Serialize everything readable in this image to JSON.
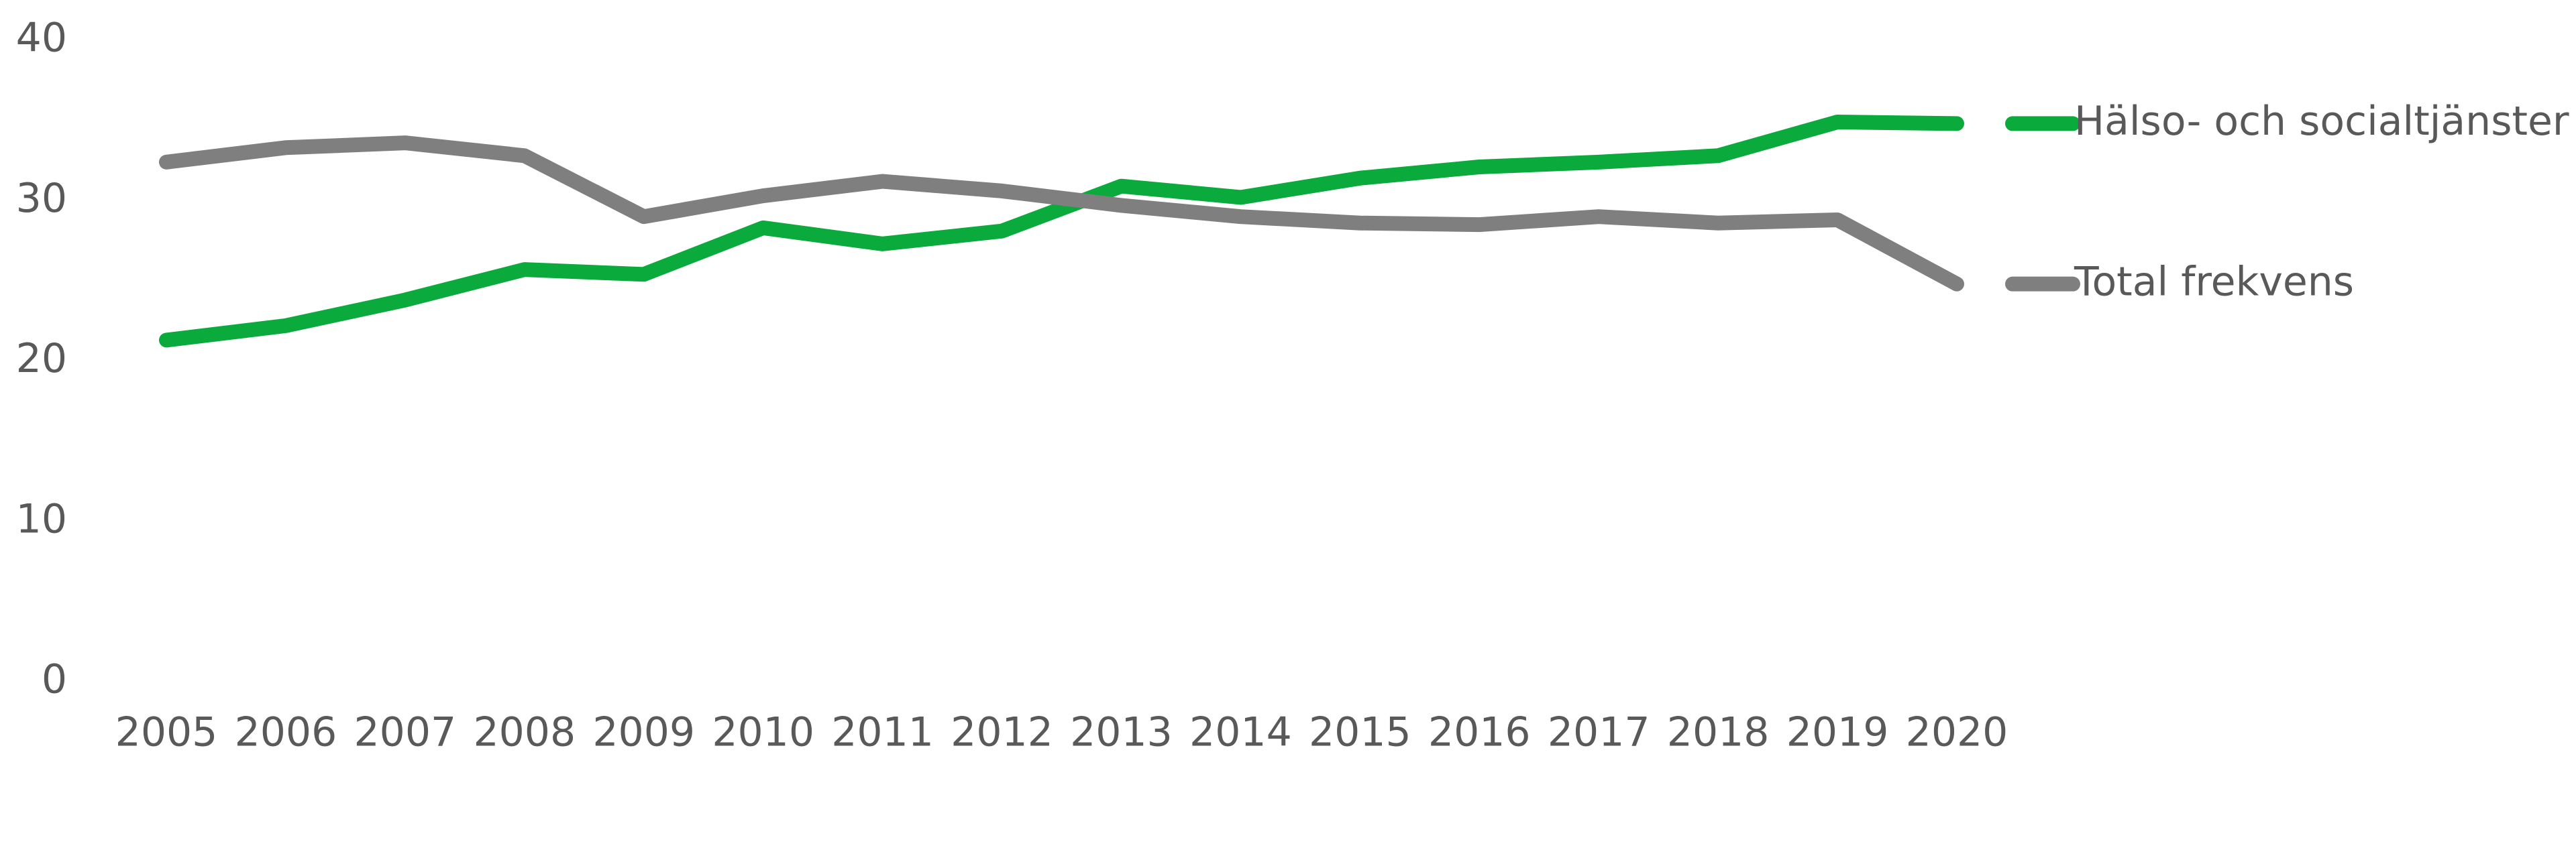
{
  "chart_data": {
    "type": "line",
    "title": "",
    "xlabel": "",
    "ylabel": "",
    "categories": [
      "2005",
      "2006",
      "2007",
      "2008",
      "2009",
      "2010",
      "2011",
      "2012",
      "2013",
      "2014",
      "2015",
      "2016",
      "2017",
      "2018",
      "2019",
      "2020"
    ],
    "ylim": [
      0,
      40
    ],
    "yticks": [
      "0",
      "10",
      "20",
      "30",
      "40"
    ],
    "grid": false,
    "legend_position": "right",
    "series": [
      {
        "name": "Hälso- och socialtjänster",
        "color": "#0aaa3c",
        "values": [
          21.3,
          22.2,
          23.8,
          25.7,
          25.4,
          28.3,
          27.3,
          28.1,
          30.9,
          30.2,
          31.4,
          32.1,
          32.4,
          32.8,
          34.9,
          34.8
        ]
      },
      {
        "name": "Total frekvens",
        "color": "#7f7f7f",
        "values": [
          32.4,
          33.3,
          33.6,
          32.8,
          29.0,
          30.3,
          31.2,
          30.6,
          29.7,
          29.0,
          28.6,
          28.5,
          29.0,
          28.6,
          28.8,
          24.8
        ]
      }
    ]
  }
}
